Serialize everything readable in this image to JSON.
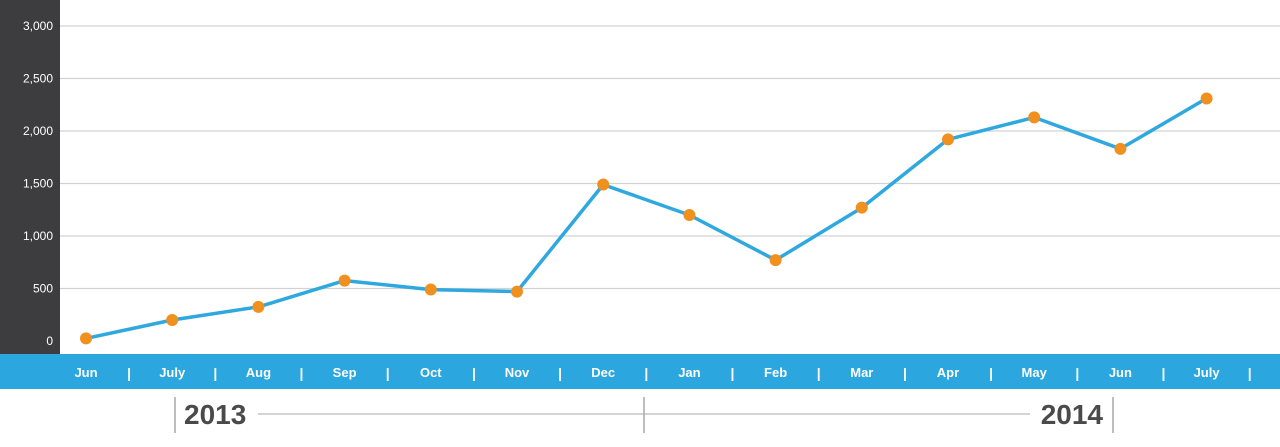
{
  "chart_data": {
    "type": "line",
    "title": "",
    "xlabel": "",
    "ylabel": "",
    "categories": [
      "Jun",
      "July",
      "Aug",
      "Sep",
      "Oct",
      "Nov",
      "Dec",
      "Jan",
      "Feb",
      "Mar",
      "Apr",
      "May",
      "Jun",
      "July"
    ],
    "values": [
      25,
      200,
      325,
      575,
      490,
      470,
      1490,
      1200,
      770,
      1270,
      1920,
      2130,
      1830,
      2310
    ],
    "ylim": [
      0,
      3000
    ],
    "yticks": [
      0,
      500,
      1000,
      1500,
      2000,
      2500,
      3000
    ],
    "ytick_labels": [
      "0",
      "500",
      "1,000",
      "1,500",
      "2,000",
      "2,500",
      "3,000"
    ],
    "grid": true,
    "legend": "none",
    "years": [
      {
        "label": "2013",
        "months": [
          "Jun",
          "July",
          "Aug",
          "Sep",
          "Oct",
          "Nov",
          "Dec"
        ]
      },
      {
        "label": "2014",
        "months": [
          "Jan",
          "Feb",
          "Mar",
          "Apr",
          "May",
          "Jun",
          "July"
        ]
      }
    ],
    "colors": {
      "line": "#2fa8df",
      "marker": "#f0901e",
      "axis_band": "#2ba6de",
      "y_axis_panel": "#3d3d3f",
      "grid": "#d2d2d2",
      "year_text": "#4a4a4a"
    }
  }
}
